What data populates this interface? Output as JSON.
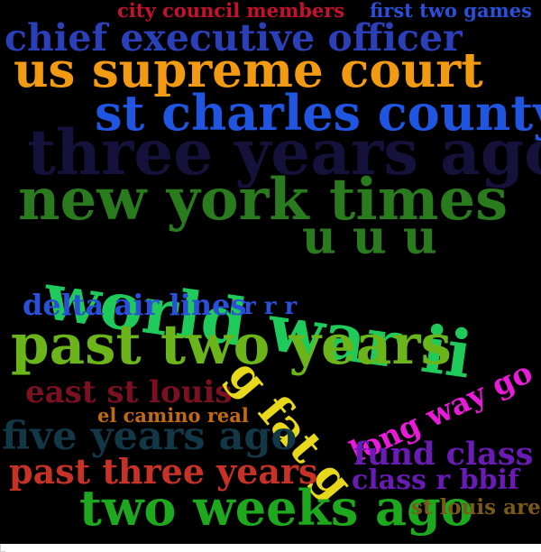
{
  "word_cloud": {
    "background": "#000000",
    "words": [
      {
        "text": "city council members",
        "color": "#c8102e"
      },
      {
        "text": "first two games",
        "color": "#2a4fd8"
      },
      {
        "text": "chief executive officer",
        "color": "#2a3fb8"
      },
      {
        "text": "us supreme court",
        "color": "#f29a12"
      },
      {
        "text": "st charles county",
        "color": "#1f55e0"
      },
      {
        "text": "three years ago",
        "color": "#14123a"
      },
      {
        "text": "new york times",
        "color": "#2a7a1e"
      },
      {
        "text": "u u u",
        "color": "#2a7a1e"
      },
      {
        "text": "world war ii",
        "color": "#1ecb5a"
      },
      {
        "text": "delta air lines",
        "color": "#2a4fd8"
      },
      {
        "text": "r r r",
        "color": "#2a4fd8"
      },
      {
        "text": "past two years",
        "color": "#6bb51a"
      },
      {
        "text": "long way go",
        "color": "#e81cd8"
      },
      {
        "text": "east st louis",
        "color": "#7a1020"
      },
      {
        "text": "g fat g",
        "color": "#e8d81c"
      },
      {
        "text": "el camino real",
        "color": "#c26a12"
      },
      {
        "text": "five years ago",
        "color": "#123848"
      },
      {
        "text": "fund class r",
        "color": "#6a1ab5"
      },
      {
        "text": "past three years",
        "color": "#c83226"
      },
      {
        "text": "class r bbif",
        "color": "#6a1ab5"
      },
      {
        "text": "two weeks ago",
        "color": "#1ea81e"
      },
      {
        "text": "st louis area",
        "color": "#7a5a18"
      }
    ]
  }
}
